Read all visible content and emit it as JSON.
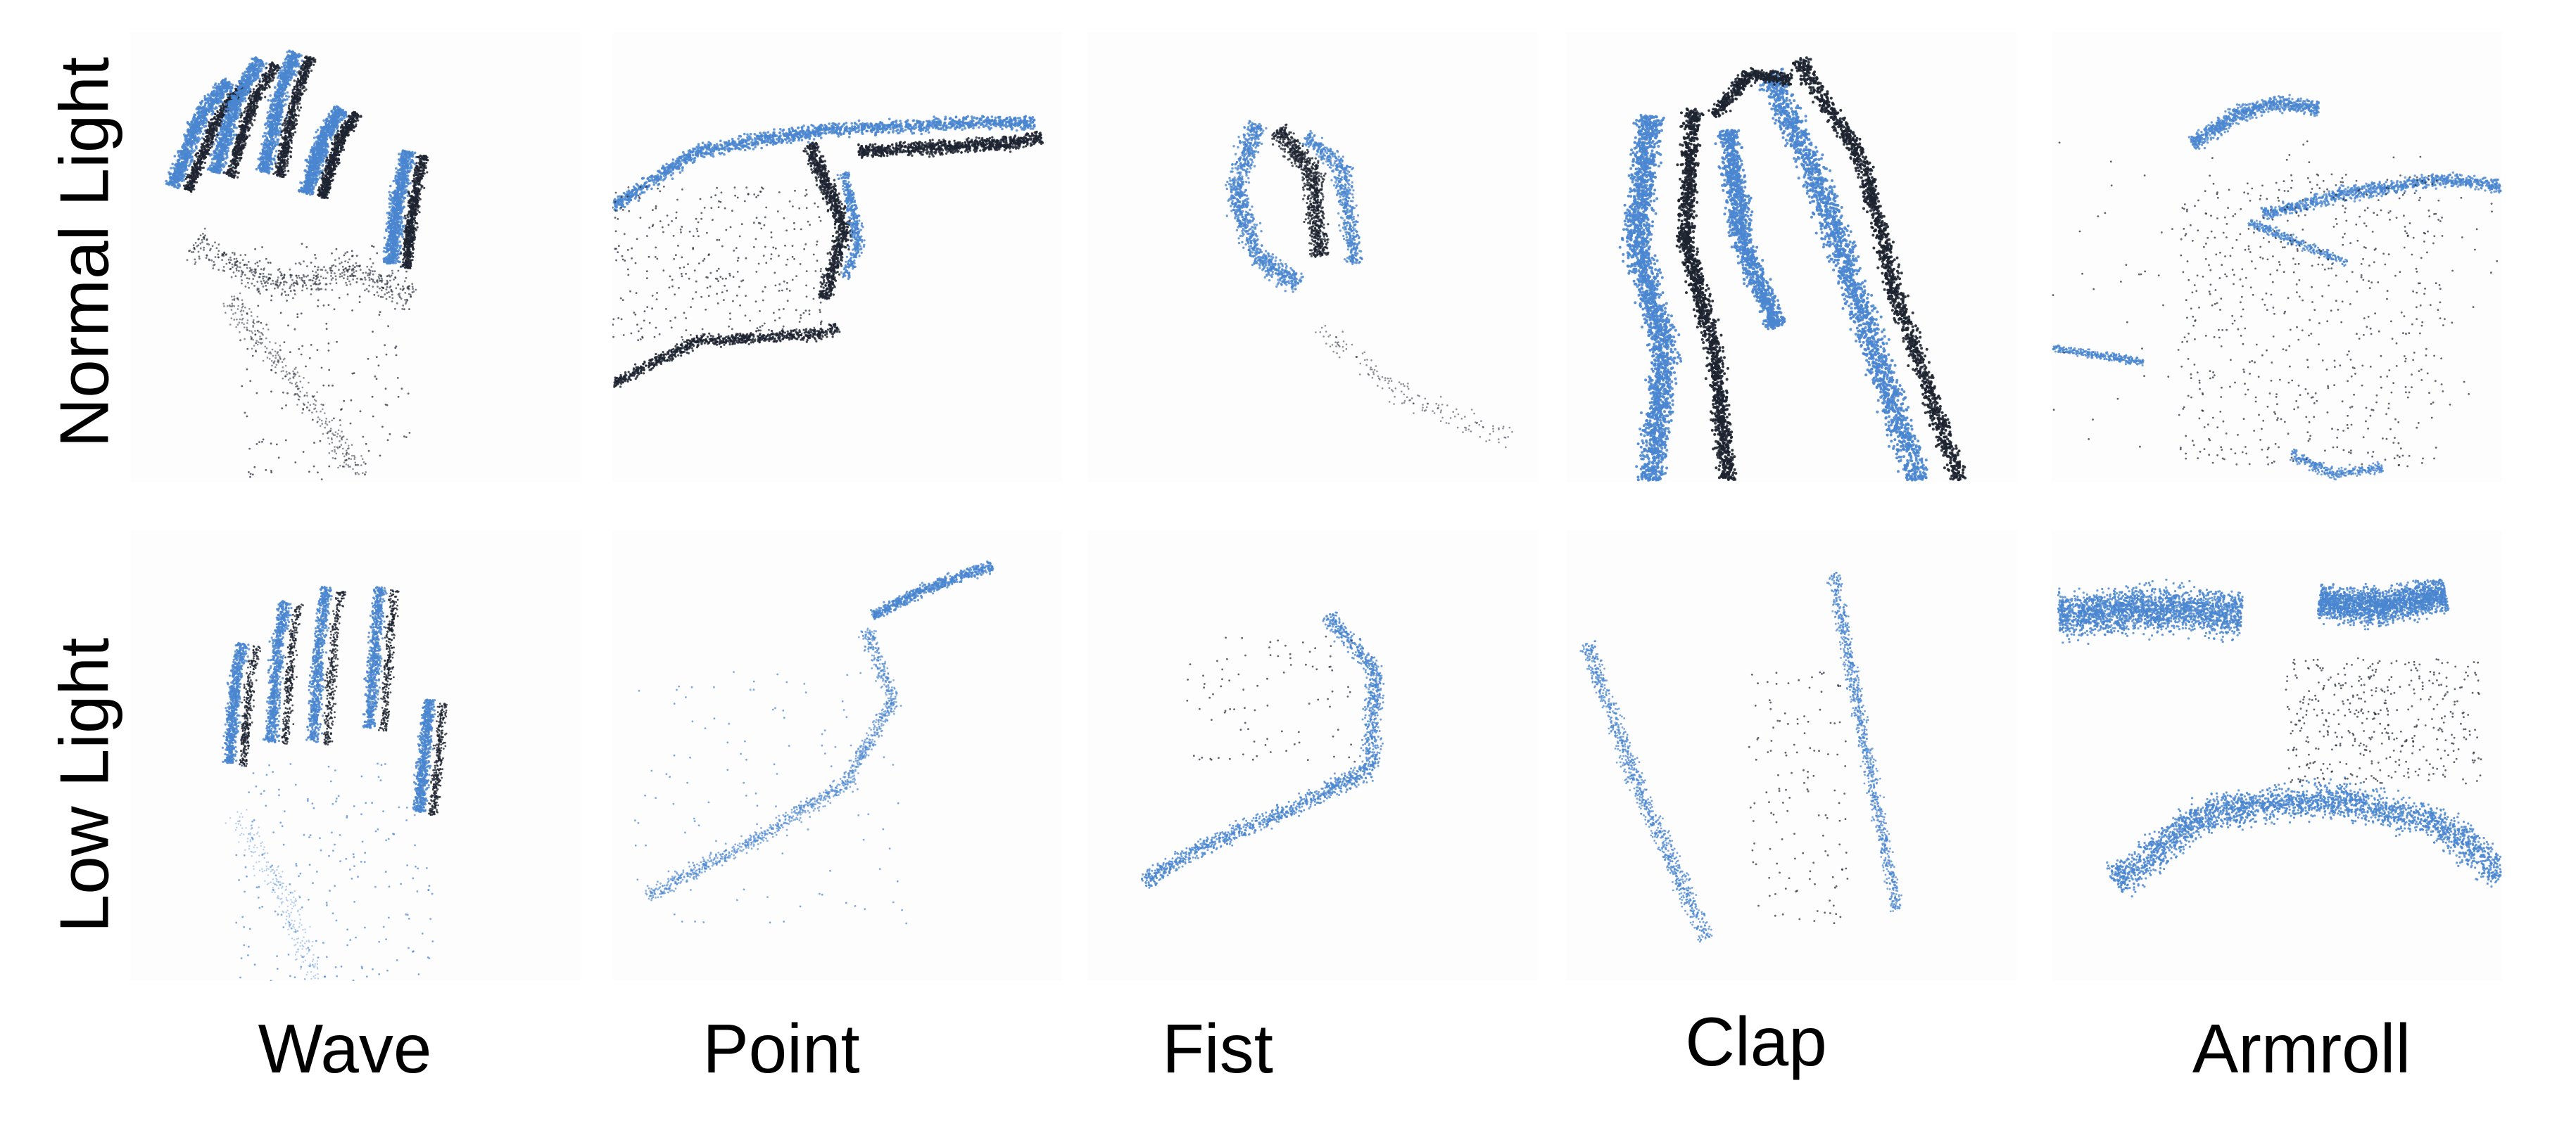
{
  "colors": {
    "event_blue": "#4a86d0",
    "event_dark": "#1d2330",
    "background": "#ffffff"
  },
  "rows": [
    {
      "label": "Normal Light",
      "key": "normal"
    },
    {
      "label": "Low Light",
      "key": "low"
    }
  ],
  "columns": [
    {
      "label": "Wave",
      "gesture": "wave"
    },
    {
      "label": "Point",
      "gesture": "point"
    },
    {
      "label": "Fist",
      "gesture": "fist"
    },
    {
      "label": "Clap",
      "gesture": "clap"
    },
    {
      "label": "Armroll",
      "gesture": "armroll"
    }
  ]
}
